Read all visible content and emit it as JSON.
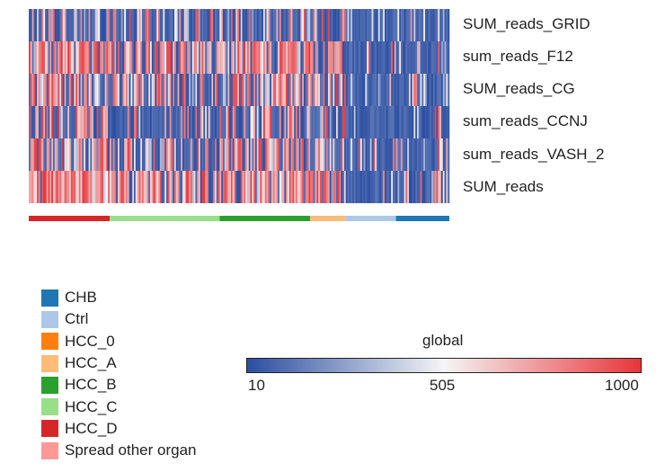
{
  "chart_data": {
    "type": "heatmap",
    "rows": [
      "SUM_reads_GRID",
      "sum_reads_F12",
      "SUM_reads_CG",
      "sum_reads_CCNJ",
      "sum_reads_VASH_2",
      "SUM_reads"
    ],
    "column_groups": [
      {
        "name": "HCC_D",
        "count": 50
      },
      {
        "name": "HCC_C",
        "count": 68
      },
      {
        "name": "HCC_B",
        "count": 56
      },
      {
        "name": "HCC_A",
        "count": 22
      },
      {
        "name": "Ctrl",
        "count": 31
      },
      {
        "name": "CHB",
        "count": 33
      }
    ],
    "row_high_fraction": {
      "SUM_reads_GRID": [
        0.3,
        0.18,
        0.25,
        0.2,
        0.02,
        0.05
      ],
      "sum_reads_F12": [
        0.75,
        0.55,
        0.65,
        0.55,
        0.05,
        0.15
      ],
      "SUM_reads_CG": [
        0.55,
        0.45,
        0.55,
        0.5,
        0.03,
        0.1
      ],
      "sum_reads_CCNJ": [
        0.5,
        0.2,
        0.4,
        0.3,
        0.02,
        0.05
      ],
      "sum_reads_VASH_2": [
        0.55,
        0.4,
        0.5,
        0.45,
        0.04,
        0.1
      ],
      "SUM_reads": [
        0.85,
        0.65,
        0.75,
        0.7,
        0.08,
        0.15
      ]
    },
    "legend": {
      "title": "",
      "items": [
        {
          "label": "CHB",
          "color": "#1f77b4"
        },
        {
          "label": "Ctrl",
          "color": "#aec7e8"
        },
        {
          "label": "HCC_0",
          "color": "#ff7f0e"
        },
        {
          "label": "HCC_A",
          "color": "#ffbb78"
        },
        {
          "label": "HCC_B",
          "color": "#2ca02c"
        },
        {
          "label": "HCC_C",
          "color": "#98df8a"
        },
        {
          "label": "HCC_D",
          "color": "#d62728"
        },
        {
          "label": "Spread other organ",
          "color": "#ff9896"
        }
      ]
    },
    "colorbar": {
      "title": "global",
      "min": 10,
      "mid": 505,
      "max": 1000,
      "tick_labels": [
        "10",
        "505",
        "1000"
      ],
      "colors": [
        "#2b4ea2",
        "#f5f5f5",
        "#e8353a"
      ]
    }
  }
}
